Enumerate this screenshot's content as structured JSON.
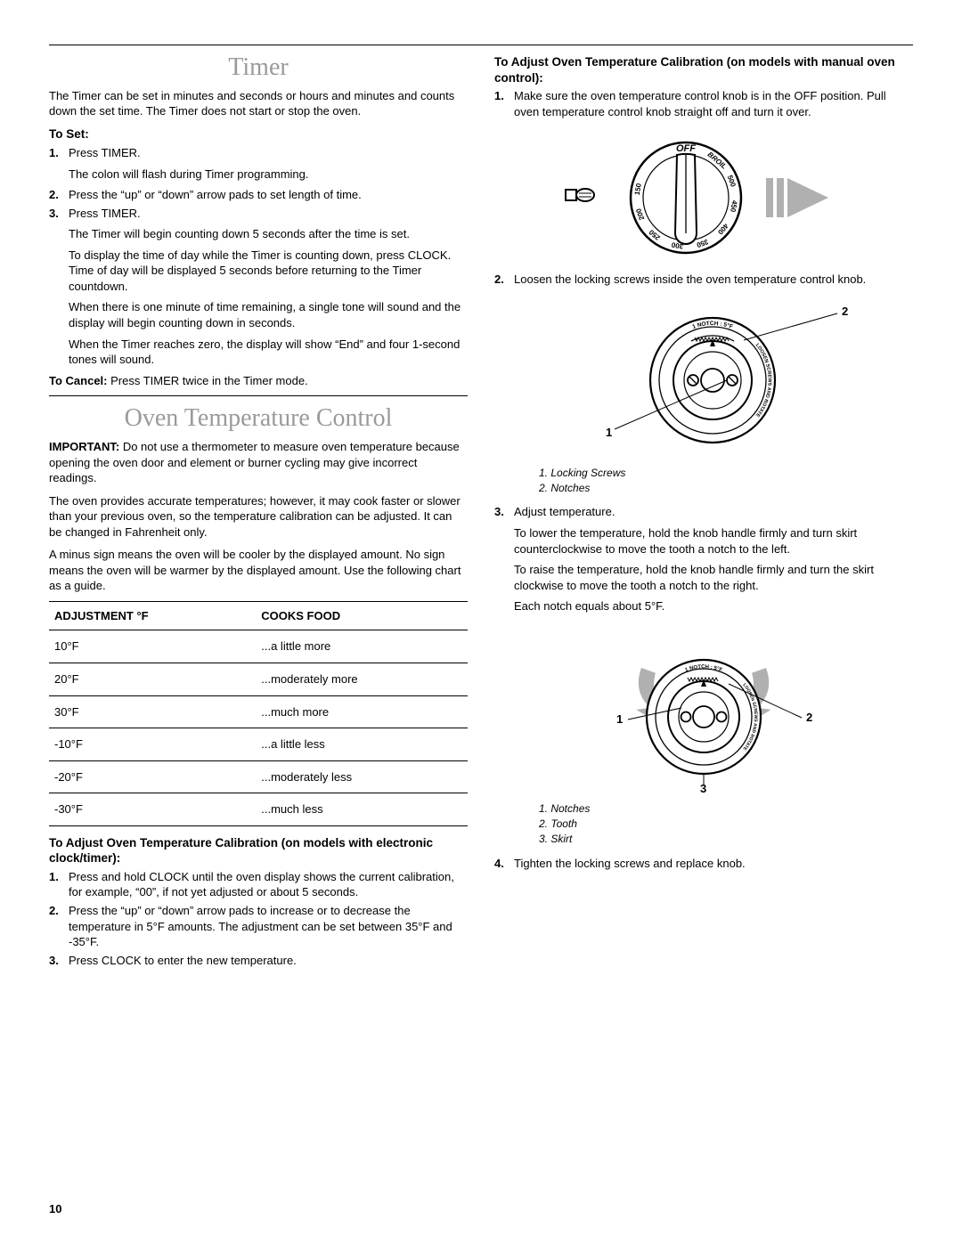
{
  "hr_color": "#000000",
  "accent_gray": "#9a9a9a",
  "page_number": "10",
  "left": {
    "timer": {
      "title": "Timer",
      "intro": "The Timer can be set in minutes and seconds or hours and minutes and counts down the set time. The Timer does not start or stop the oven.",
      "to_set_label": "To Set:",
      "steps": [
        {
          "n": "1.",
          "t": "Press TIMER.",
          "after": [
            "The colon will flash during Timer programming."
          ]
        },
        {
          "n": "2.",
          "t": "Press the “up” or “down” arrow pads to set length of time."
        },
        {
          "n": "3.",
          "t": "Press TIMER.",
          "after": [
            "The Timer will begin counting down 5 seconds after the time is set.",
            "To display the time of day while the Timer is counting down, press CLOCK. Time of day will be displayed 5 seconds before returning to the Timer countdown.",
            "When there is one minute of time remaining, a single tone will sound and the display will begin counting down in seconds.",
            "When the Timer reaches zero, the display will show “End” and four 1-second tones will sound."
          ]
        }
      ],
      "cancel_bold": "To Cancel:",
      "cancel_text": " Press TIMER twice in the Timer mode."
    },
    "otc": {
      "title": "Oven Temperature Control",
      "important_bold": "IMPORTANT:",
      "important_text": " Do not use a thermometer to measure oven temperature because opening the oven door and element or burner cycling may give incorrect readings.",
      "p2": "The oven provides accurate temperatures; however, it may cook faster or slower than your previous oven, so the temperature calibration can be adjusted. It can be changed in Fahrenheit only.",
      "p3": "A minus sign means the oven will be cooler by the displayed amount. No sign means the oven will be warmer by the displayed amount. Use the following chart as a guide.",
      "table": {
        "col1": "ADJUSTMENT °F",
        "col2": "COOKS FOOD",
        "rows": [
          [
            "10°F",
            "...a little more"
          ],
          [
            "20°F",
            "...moderately more"
          ],
          [
            "30°F",
            "...much more"
          ],
          [
            "-10°F",
            "...a little less"
          ],
          [
            "-20°F",
            "...moderately less"
          ],
          [
            "-30°F",
            "...much less"
          ]
        ]
      },
      "elec_head": "To Adjust Oven Temperature Calibration (on models with electronic clock/timer):",
      "elec_steps": [
        {
          "n": "1.",
          "t": "Press and hold CLOCK until the oven display shows the current calibration, for example, “00”, if not yet adjusted or about 5 seconds."
        },
        {
          "n": "2.",
          "t": "Press the “up” or “down” arrow pads to increase or to decrease the temperature in 5°F amounts. The adjustment can be set between 35°F and -35°F."
        },
        {
          "n": "3.",
          "t": "Press CLOCK to enter the new temperature."
        }
      ]
    }
  },
  "right": {
    "manual_head": "To Adjust Oven Temperature Calibration (on models with manual oven control):",
    "step1": {
      "n": "1.",
      "t": "Make sure the oven temperature control knob is in the OFF position. Pull oven temperature control knob straight off and turn it over."
    },
    "knob": {
      "off": "OFF",
      "broil": "BROIL",
      "t150": "150",
      "t200": "200",
      "t250": "250",
      "t300": "300",
      "t350": "350",
      "t400": "400",
      "t450": "450",
      "t500": "500"
    },
    "step2": {
      "n": "2.",
      "t": "Loosen the locking screws inside the oven temperature control knob."
    },
    "fig2_label1": "1",
    "fig2_label2": "2",
    "legend2_1": "1. Locking Screws",
    "legend2_2": "2. Notches",
    "step3": {
      "n": "3.",
      "t": "Adjust temperature."
    },
    "step3_p1": "To lower the temperature, hold the knob handle firmly and turn skirt counterclockwise to move the tooth a notch to the left.",
    "step3_p2": "To raise the temperature, hold the knob handle firmly and turn the skirt clockwise to move the tooth a notch to the right.",
    "step3_p3": "Each notch equals about 5°F.",
    "fig3_label1": "1",
    "fig3_label2": "2",
    "fig3_label3": "3",
    "legend3_1": "1. Notches",
    "legend3_2": "2. Tooth",
    "legend3_3": "3. Skirt",
    "step4": {
      "n": "4.",
      "t": "Tighten the locking screws and replace knob."
    },
    "notch_text": "1 NOTCH : 5°F",
    "loosen_text": "LOOSEN SCREWS AND ROTATE"
  }
}
